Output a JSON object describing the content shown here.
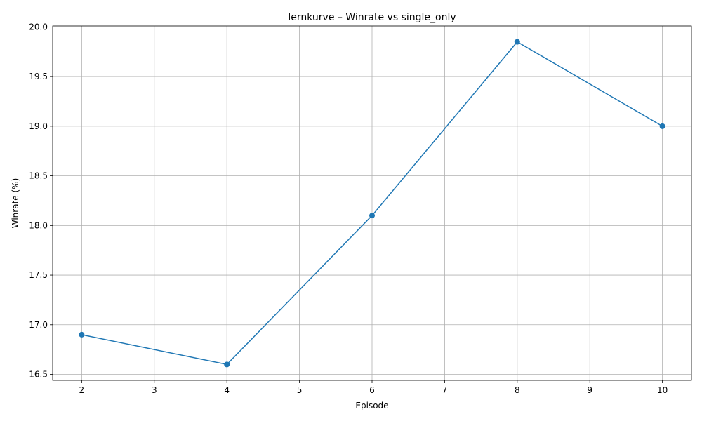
{
  "chart_data": {
    "type": "line",
    "title": "lernkurve – Winrate vs single_only",
    "xlabel": "Episode",
    "ylabel": "Winrate (%)",
    "x": [
      2,
      4,
      6,
      8,
      10
    ],
    "series": [
      {
        "values": [
          16.9,
          16.6,
          18.1,
          19.85,
          19.0
        ]
      }
    ],
    "xlim": [
      1.6,
      10.4
    ],
    "ylim": [
      16.44,
      20.01
    ],
    "xticks": [
      "2",
      "3",
      "4",
      "5",
      "6",
      "7",
      "8",
      "9",
      "10"
    ],
    "yticks": [
      "16.5",
      "17.0",
      "17.5",
      "18.0",
      "18.5",
      "19.0",
      "19.5",
      "20.0"
    ],
    "grid": true,
    "marker": "circle",
    "colors": {
      "line": "#1f77b4",
      "grid": "#b0b0b0",
      "axis": "#000000"
    }
  }
}
